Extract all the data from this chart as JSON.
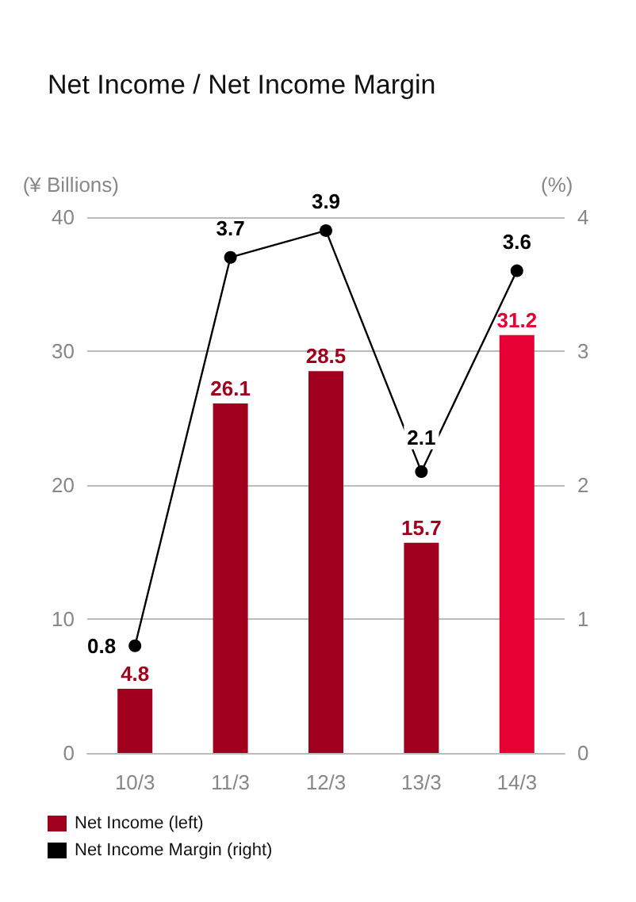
{
  "chart_data": {
    "type": "bar",
    "title": "Net Income / Net Income Margin",
    "ylabel": "(¥ Billions)",
    "y2label": "(%)",
    "categories": [
      "10/3",
      "11/3",
      "12/3",
      "13/3",
      "14/3"
    ],
    "series": [
      {
        "name": "Net Income (left)",
        "color": "#a0001e",
        "colors": [
          "#a0001e",
          "#a0001e",
          "#a0001e",
          "#a0001e",
          "#e60033"
        ],
        "values": [
          4.8,
          26.1,
          28.5,
          15.7,
          31.2
        ]
      },
      {
        "name": "Net Income Margin (right)",
        "type": "line",
        "axis": "y2",
        "color": "#000000",
        "values": [
          0.8,
          3.7,
          3.9,
          2.1,
          3.6
        ]
      }
    ],
    "ylim": [
      0,
      40
    ],
    "yticks": [
      0,
      10,
      20,
      30,
      40
    ],
    "y2lim": [
      0,
      4
    ],
    "y2ticks": [
      0,
      1,
      2,
      3,
      4
    ],
    "data_labels": true,
    "grid": "y",
    "legend": "bottom left",
    "marker": "circle",
    "line_style": "solid"
  }
}
